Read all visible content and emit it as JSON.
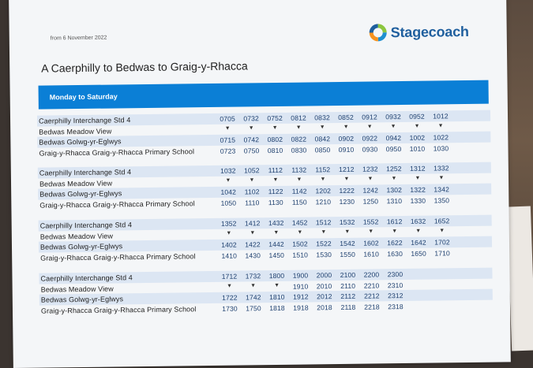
{
  "header": {
    "effective_date": "from 6 November 2022",
    "brand": "Stagecoach",
    "title": "A Caerphilly to Bedwas to Graig-y-Rhacca",
    "days": "Monday to Saturday"
  },
  "colors": {
    "brand_blue": "#0b7fd6",
    "logo_text": "#1f5f9e",
    "logo_green": "#8cc63f",
    "logo_orange": "#f7931e"
  },
  "stops": [
    "Caerphilly Interchange Std 4",
    "Bedwas Meadow View",
    "Bedwas Golwg-yr-Eglwys",
    "Graig-y-Rhacca Graig-y-Rhacca Primary School"
  ],
  "blocks": [
    {
      "rows": [
        [
          "0705",
          "0732",
          "0752",
          "0812",
          "0832",
          "0852",
          "0912",
          "0932",
          "0952",
          "1012"
        ],
        [
          "▼",
          "▼",
          "▼",
          "▼",
          "▼",
          "▼",
          "▼",
          "▼",
          "▼",
          "▼"
        ],
        [
          "0715",
          "0742",
          "0802",
          "0822",
          "0842",
          "0902",
          "0922",
          "0942",
          "1002",
          "1022"
        ],
        [
          "0723",
          "0750",
          "0810",
          "0830",
          "0850",
          "0910",
          "0930",
          "0950",
          "1010",
          "1030"
        ]
      ]
    },
    {
      "rows": [
        [
          "1032",
          "1052",
          "1112",
          "1132",
          "1152",
          "1212",
          "1232",
          "1252",
          "1312",
          "1332"
        ],
        [
          "▼",
          "▼",
          "▼",
          "▼",
          "▼",
          "▼",
          "▼",
          "▼",
          "▼",
          "▼"
        ],
        [
          "1042",
          "1102",
          "1122",
          "1142",
          "1202",
          "1222",
          "1242",
          "1302",
          "1322",
          "1342"
        ],
        [
          "1050",
          "1110",
          "1130",
          "1150",
          "1210",
          "1230",
          "1250",
          "1310",
          "1330",
          "1350"
        ]
      ]
    },
    {
      "rows": [
        [
          "1352",
          "1412",
          "1432",
          "1452",
          "1512",
          "1532",
          "1552",
          "1612",
          "1632",
          "1652"
        ],
        [
          "▼",
          "▼",
          "▼",
          "▼",
          "▼",
          "▼",
          "▼",
          "▼",
          "▼",
          "▼"
        ],
        [
          "1402",
          "1422",
          "1442",
          "1502",
          "1522",
          "1542",
          "1602",
          "1622",
          "1642",
          "1702"
        ],
        [
          "1410",
          "1430",
          "1450",
          "1510",
          "1530",
          "1550",
          "1610",
          "1630",
          "1650",
          "1710"
        ]
      ]
    },
    {
      "rows": [
        [
          "1712",
          "1732",
          "1800",
          "1900",
          "2000",
          "2100",
          "2200",
          "2300"
        ],
        [
          "▼",
          "▼",
          "▼",
          "1910",
          "2010",
          "2110",
          "2210",
          "2310"
        ],
        [
          "1722",
          "1742",
          "1810",
          "1912",
          "2012",
          "2112",
          "2212",
          "2312"
        ],
        [
          "1730",
          "1750",
          "1818",
          "1918",
          "2018",
          "2118",
          "2218",
          "2318"
        ]
      ]
    }
  ]
}
